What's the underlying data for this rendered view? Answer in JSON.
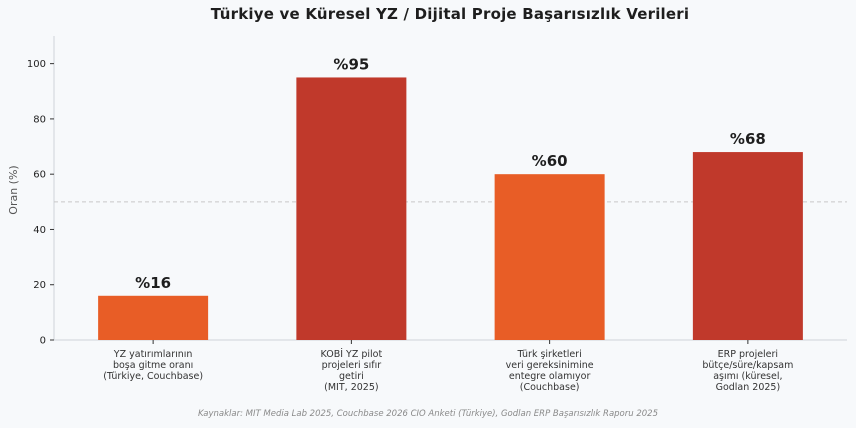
{
  "chart_data": {
    "type": "bar",
    "title": "Türkiye ve Küresel YZ / Dijital Proje Başarısızlık Verileri",
    "ylabel": "Oran (%)",
    "xlabel": "",
    "ylim": [
      0,
      110
    ],
    "yticks": [
      0,
      20,
      40,
      60,
      80,
      100
    ],
    "reference_line": 50,
    "grid": false,
    "categories": [
      [
        "YZ yatırımlarının",
        "boşa gitme oranı",
        "(Türkiye, Couchbase)"
      ],
      [
        "KOBİ YZ pilot",
        "projeleri sıfır",
        "getiri",
        "(MIT, 2025)"
      ],
      [
        "Türk şirketleri",
        "veri gereksinimine",
        "entegre olamıyor",
        "(Couchbase)"
      ],
      [
        "ERP projeleri",
        "bütçe/süre/kapsam",
        "aşımı (küresel,",
        "Godlan 2025)"
      ]
    ],
    "values": [
      16,
      95,
      60,
      68
    ],
    "value_labels": [
      "%16",
      "%95",
      "%60",
      "%68"
    ],
    "colors": [
      "#e85d26",
      "#c0392b",
      "#e85d26",
      "#c0392b"
    ],
    "source": "Kaynaklar: MIT Media Lab 2025, Couchbase 2026 CIO Anketi (Türkiye), Godlan ERP Başarısızlık Raporu 2025"
  }
}
